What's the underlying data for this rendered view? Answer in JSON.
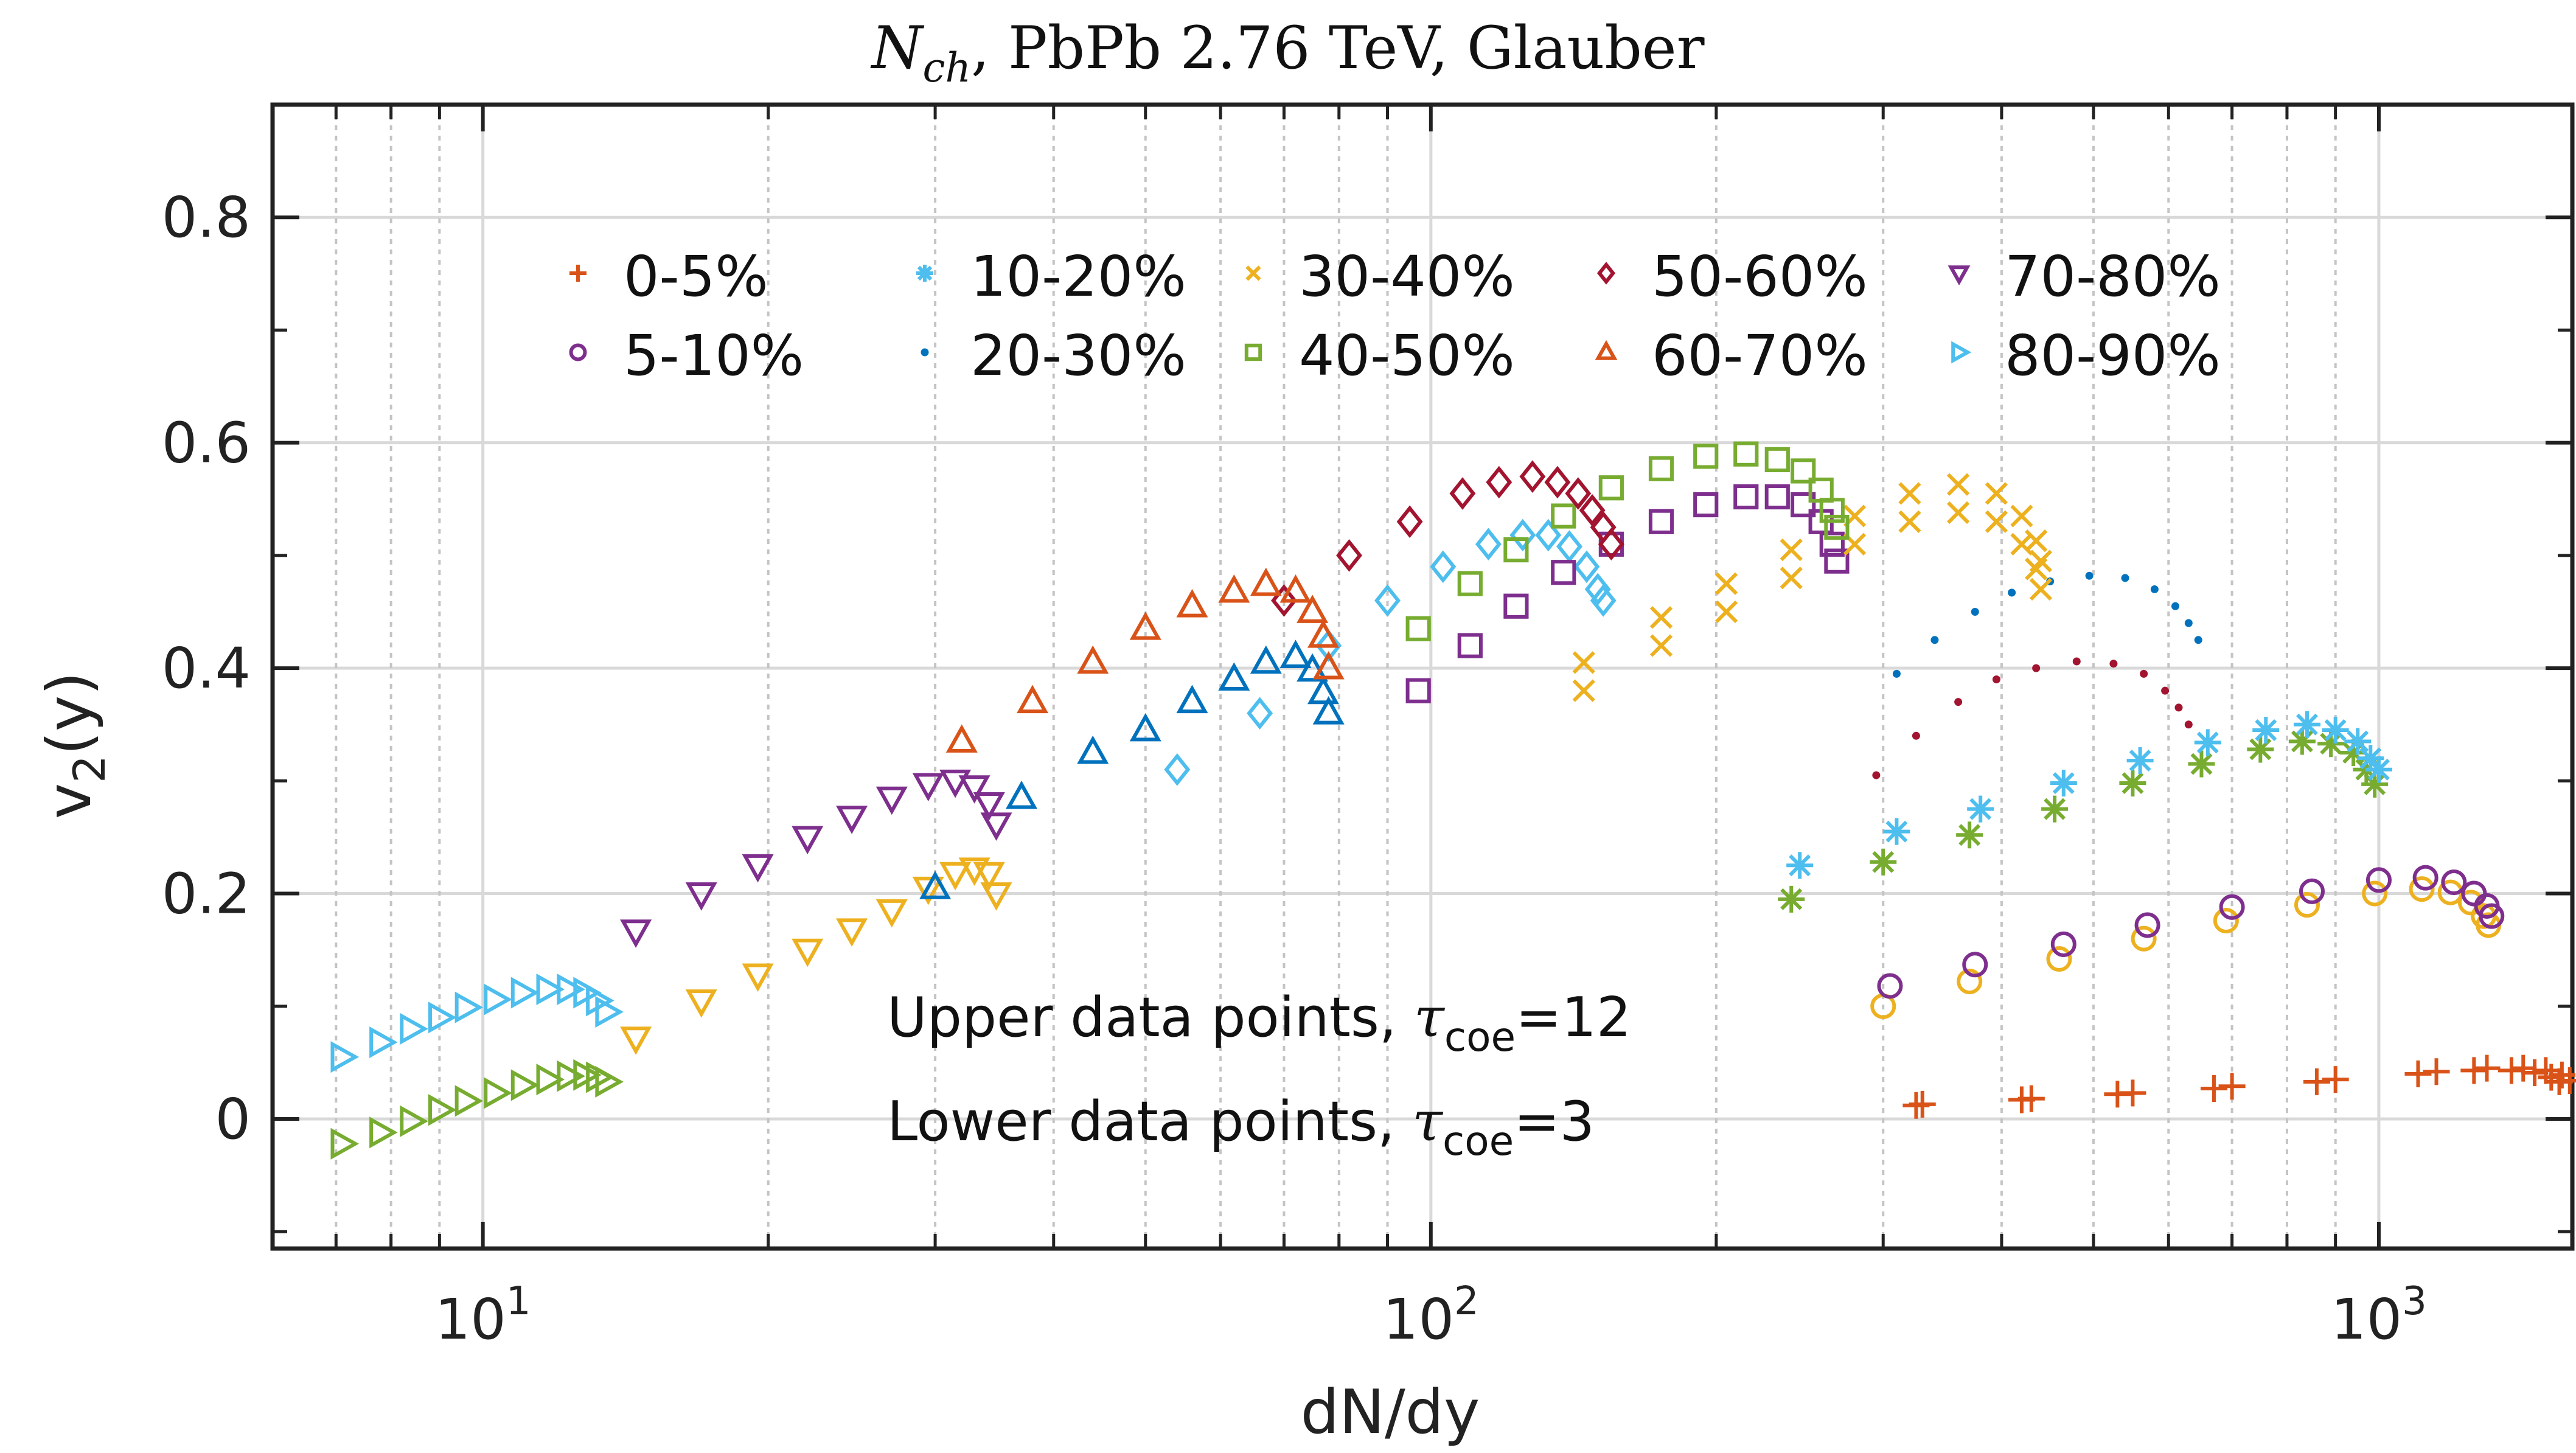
{
  "chart_data": {
    "type": "scatter",
    "title": "N_ch, PbPb 2.76 TeV, Glauber",
    "title_parts": {
      "main": "N",
      "sub": "ch",
      "rest": ", PbPb 2.76 TeV, Glauber"
    },
    "xlabel": "dN/dy",
    "ylabel": {
      "main": "v",
      "sub": "2",
      "rest": "(y)"
    },
    "xscale": "log",
    "xlim": [
      6,
      1600
    ],
    "ylim": [
      -0.115,
      0.9
    ],
    "yticks": [
      0,
      0.2,
      0.4,
      0.6,
      0.8
    ],
    "ytick_labels": [
      "0",
      "0.2",
      "0.4",
      "0.6",
      "0.8"
    ],
    "xticks": [
      10,
      100,
      1000
    ],
    "xtick_labels": [
      {
        "base": "10",
        "exp": "1"
      },
      {
        "base": "10",
        "exp": "2"
      },
      {
        "base": "10",
        "exp": "3"
      }
    ],
    "grid": true,
    "legend_position": "top-center",
    "annotations": [
      {
        "prefix": "Upper data points, ",
        "tau": "τ",
        "sub": "coe",
        "suffix": "=12"
      },
      {
        "prefix": "Lower data points, ",
        "tau": "τ",
        "sub": "coe",
        "suffix": "=3"
      }
    ],
    "series": [
      {
        "name": "0-5%",
        "marker": "plus",
        "color": "#D95319",
        "upper": {
          "x": [
            330,
            430,
            550,
            700,
            900,
            1150,
            1300,
            1420,
            1500,
            1560,
            1590
          ],
          "y": [
            0.013,
            0.018,
            0.023,
            0.029,
            0.035,
            0.042,
            0.045,
            0.045,
            0.043,
            0.039,
            0.034
          ]
        },
        "lower": {
          "x": [
            325,
            420,
            530,
            670,
            860,
            1100,
            1260,
            1380,
            1460,
            1520,
            1550
          ],
          "y": [
            0.012,
            0.017,
            0.022,
            0.027,
            0.033,
            0.04,
            0.043,
            0.043,
            0.041,
            0.037,
            0.033
          ]
        }
      },
      {
        "name": "5-10%",
        "marker": "circle",
        "color": "#7E2F8E",
        "upper": {
          "x": [
            305,
            375,
            465,
            570,
            700,
            850,
            1000,
            1120,
            1200,
            1260,
            1300,
            1315
          ],
          "y": [
            0.118,
            0.137,
            0.155,
            0.172,
            0.188,
            0.202,
            0.212,
            0.214,
            0.21,
            0.2,
            0.189,
            0.18
          ]
        },
        "lower": null
      },
      {
        "name": "10-20%",
        "marker": "star",
        "color": "#4DBEEE",
        "upper": {
          "x": [
            245,
            310,
            380,
            465,
            560,
            660,
            760,
            840,
            900,
            950,
            980,
            1000
          ],
          "y": [
            0.225,
            0.255,
            0.275,
            0.298,
            0.318,
            0.334,
            0.345,
            0.35,
            0.345,
            0.335,
            0.32,
            0.31
          ]
        },
        "lower": null
      },
      {
        "name": "20-30%",
        "marker": "point",
        "color": "#0072BD",
        "upper": {
          "x": [
            310,
            340,
            375,
            410,
            450,
            495,
            540,
            580,
            610,
            630,
            645
          ],
          "y": [
            0.395,
            0.425,
            0.45,
            0.467,
            0.477,
            0.482,
            0.48,
            0.47,
            0.455,
            0.44,
            0.425
          ]
        },
        "lower": null
      },
      {
        "name": "30-40%",
        "marker": "x",
        "color": "#EDB120",
        "upper": {
          "x": [
            145,
            175,
            205,
            240,
            280,
            320,
            360,
            395,
            420,
            435,
            440
          ],
          "y": [
            0.405,
            0.445,
            0.475,
            0.505,
            0.535,
            0.555,
            0.563,
            0.555,
            0.535,
            0.513,
            0.495
          ]
        },
        "lower": {
          "x": [
            145,
            175,
            205,
            240,
            280,
            320,
            360,
            395,
            420,
            435,
            440
          ],
          "y": [
            0.38,
            0.42,
            0.45,
            0.48,
            0.51,
            0.53,
            0.538,
            0.53,
            0.51,
            0.488,
            0.47
          ]
        }
      },
      {
        "name": "40-50%",
        "marker": "square",
        "color": "#77AC30",
        "upper": {
          "x": [
            97,
            110,
            123,
            138,
            155,
            175,
            195,
            215,
            232,
            247,
            258,
            265,
            268
          ],
          "y": [
            0.435,
            0.475,
            0.505,
            0.535,
            0.56,
            0.577,
            0.588,
            0.59,
            0.585,
            0.575,
            0.558,
            0.54,
            0.525
          ]
        },
        "lower": null
      },
      {
        "name": "50-60%",
        "marker": "diamond",
        "color": "#A2142F",
        "upper": {
          "x": [
            70,
            82,
            95,
            108,
            118,
            128,
            136,
            143,
            148,
            152,
            155
          ],
          "y": [
            0.46,
            0.5,
            0.53,
            0.555,
            0.565,
            0.57,
            0.565,
            0.555,
            0.54,
            0.525,
            0.51
          ]
        },
        "lower": null
      },
      {
        "name": "60-70%",
        "marker": "triangle-up",
        "color": "#D95319",
        "upper": {
          "x": [
            32,
            38,
            44,
            50,
            56,
            62,
            67,
            72,
            75,
            77,
            78
          ],
          "y": [
            0.335,
            0.37,
            0.405,
            0.435,
            0.455,
            0.468,
            0.474,
            0.468,
            0.45,
            0.428,
            0.4
          ]
        },
        "lower": null
      },
      {
        "name": "70-80%",
        "marker": "triangle-down",
        "color": "#7E2F8E",
        "upper": {
          "x": [
            14.5,
            17,
            19.5,
            22,
            24.5,
            27,
            29.5,
            31.5,
            33,
            34.2,
            34.8
          ],
          "y": [
            0.167,
            0.2,
            0.225,
            0.25,
            0.268,
            0.285,
            0.297,
            0.3,
            0.295,
            0.28,
            0.262
          ]
        },
        "lower": null
      },
      {
        "name": "80-90%",
        "marker": "triangle-right",
        "color": "#4DBEEE",
        "upper": {
          "x": [
            7.1,
            7.8,
            8.4,
            9.0,
            9.6,
            10.3,
            11.0,
            11.7,
            12.3,
            12.8,
            13.2,
            13.5
          ],
          "y": [
            0.055,
            0.068,
            0.08,
            0.09,
            0.099,
            0.106,
            0.112,
            0.115,
            0.115,
            0.112,
            0.105,
            0.095
          ]
        },
        "lower": null
      }
    ],
    "unlisted_series": [
      {
        "marker": "triangle-down",
        "color": "#EDB120",
        "x": [
          14.5,
          17,
          19.5,
          22,
          24.5,
          27,
          29.5,
          31.5,
          33,
          34.2,
          34.8
        ],
        "y": [
          0.072,
          0.105,
          0.128,
          0.15,
          0.168,
          0.185,
          0.205,
          0.218,
          0.222,
          0.218,
          0.2
        ]
      },
      {
        "marker": "triangle-right",
        "color": "#77AC30",
        "x": [
          7.1,
          7.8,
          8.4,
          9.0,
          9.6,
          10.3,
          11.0,
          11.7,
          12.3,
          12.8,
          13.2,
          13.5
        ],
        "y": [
          -0.022,
          -0.012,
          -0.002,
          0.008,
          0.016,
          0.023,
          0.03,
          0.035,
          0.038,
          0.039,
          0.037,
          0.033
        ]
      },
      {
        "marker": "triangle-up",
        "color": "#0072BD",
        "x": [
          30,
          37,
          44,
          50,
          56,
          62,
          67,
          72,
          75,
          77,
          78
        ],
        "y": [
          0.205,
          0.285,
          0.325,
          0.345,
          0.37,
          0.39,
          0.405,
          0.41,
          0.398,
          0.378,
          0.36
        ]
      },
      {
        "marker": "diamond",
        "color": "#4DBEEE",
        "x": [
          54,
          66,
          78,
          90,
          103,
          115,
          125,
          133,
          140,
          146,
          150,
          152
        ],
        "y": [
          0.31,
          0.36,
          0.42,
          0.46,
          0.49,
          0.51,
          0.518,
          0.518,
          0.508,
          0.49,
          0.47,
          0.46
        ]
      },
      {
        "marker": "square",
        "color": "#7E2F8E",
        "x": [
          97,
          110,
          123,
          138,
          155,
          175,
          195,
          215,
          232,
          247,
          258,
          265,
          268
        ],
        "y": [
          0.38,
          0.42,
          0.455,
          0.485,
          0.51,
          0.53,
          0.545,
          0.552,
          0.552,
          0.545,
          0.53,
          0.51,
          0.495
        ]
      },
      {
        "marker": "circle",
        "color": "#EDB120",
        "x": [
          300,
          370,
          460,
          565,
          690,
          840,
          990,
          1110,
          1190,
          1250,
          1290,
          1305
        ],
        "y": [
          0.1,
          0.122,
          0.142,
          0.16,
          0.176,
          0.19,
          0.2,
          0.204,
          0.201,
          0.192,
          0.18,
          0.172
        ]
      },
      {
        "marker": "star",
        "color": "#77AC30",
        "x": [
          240,
          300,
          370,
          455,
          550,
          650,
          750,
          830,
          890,
          940,
          970,
          990
        ],
        "y": [
          0.195,
          0.228,
          0.252,
          0.275,
          0.298,
          0.315,
          0.328,
          0.335,
          0.333,
          0.325,
          0.31,
          0.297
        ]
      },
      {
        "marker": "point",
        "color": "#A2142F",
        "x": [
          295,
          325,
          360,
          395,
          435,
          480,
          525,
          565,
          595,
          615,
          630
        ],
        "y": [
          0.305,
          0.34,
          0.37,
          0.39,
          0.4,
          0.406,
          0.404,
          0.395,
          0.38,
          0.365,
          0.35
        ]
      }
    ]
  }
}
